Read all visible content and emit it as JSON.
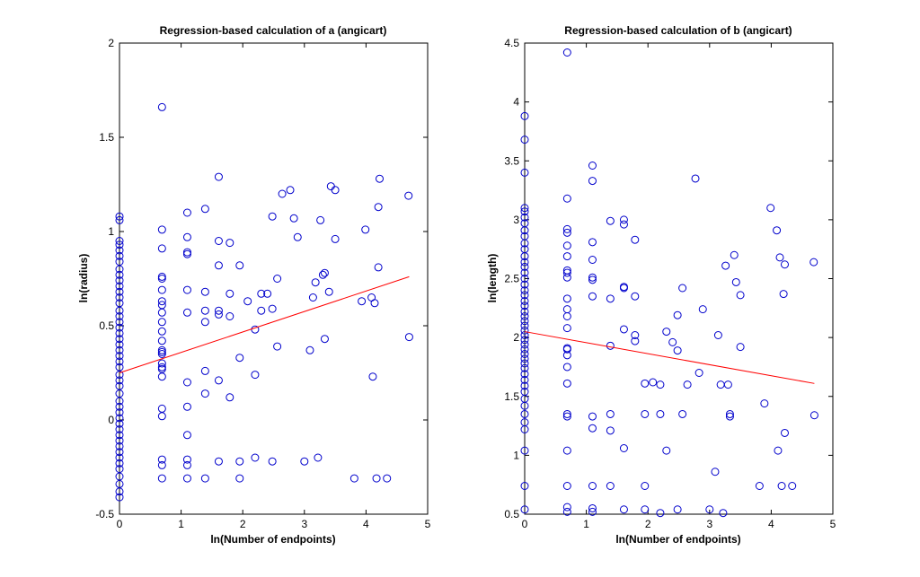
{
  "chart_data": [
    {
      "type": "scatter",
      "title": "Regression-based calculation of a (angicart)",
      "xlabel": "ln(Number of endpoints)",
      "ylabel": "ln(radius)",
      "xlim": [
        0,
        5
      ],
      "ylim": [
        -0.5,
        2
      ],
      "xticks": [
        "0",
        "1",
        "2",
        "3",
        "4",
        "5"
      ],
      "yticks": [
        "-0.5",
        "0",
        "0.5",
        "1",
        "1.5",
        "2"
      ],
      "grid": false,
      "marker_color": "#0000cc",
      "fit_line_color": "#ff0000",
      "fit_line": {
        "x": [
          0,
          4.7
        ],
        "y": [
          0.25,
          0.76
        ]
      },
      "points": [
        [
          0,
          1.08
        ],
        [
          0,
          1.06
        ],
        [
          0,
          0.95
        ],
        [
          0,
          0.93
        ],
        [
          0,
          0.9
        ],
        [
          0,
          0.87
        ],
        [
          0,
          0.84
        ],
        [
          0,
          0.8
        ],
        [
          0,
          0.77
        ],
        [
          0,
          0.74
        ],
        [
          0,
          0.71
        ],
        [
          0,
          0.68
        ],
        [
          0,
          0.65
        ],
        [
          0,
          0.62
        ],
        [
          0,
          0.58
        ],
        [
          0,
          0.55
        ],
        [
          0,
          0.52
        ],
        [
          0,
          0.49
        ],
        [
          0,
          0.46
        ],
        [
          0,
          0.43
        ],
        [
          0,
          0.4
        ],
        [
          0,
          0.37
        ],
        [
          0,
          0.34
        ],
        [
          0,
          0.31
        ],
        [
          0,
          0.28
        ],
        [
          0,
          0.24
        ],
        [
          0,
          0.21
        ],
        [
          0,
          0.18
        ],
        [
          0,
          0.14
        ],
        [
          0,
          0.1
        ],
        [
          0,
          0.07
        ],
        [
          0,
          0.04
        ],
        [
          0,
          0.01
        ],
        [
          0,
          -0.02
        ],
        [
          0,
          -0.05
        ],
        [
          0,
          -0.08
        ],
        [
          0,
          -0.11
        ],
        [
          0,
          -0.14
        ],
        [
          0,
          -0.17
        ],
        [
          0,
          -0.2
        ],
        [
          0,
          -0.23
        ],
        [
          0,
          -0.26
        ],
        [
          0,
          -0.3
        ],
        [
          0,
          -0.34
        ],
        [
          0,
          -0.38
        ],
        [
          0,
          -0.41
        ],
        [
          0.69,
          1.66
        ],
        [
          0.69,
          1.01
        ],
        [
          0.69,
          0.91
        ],
        [
          0.69,
          0.76
        ],
        [
          0.69,
          0.75
        ],
        [
          0.69,
          0.69
        ],
        [
          0.69,
          0.63
        ],
        [
          0.69,
          0.61
        ],
        [
          0.69,
          0.57
        ],
        [
          0.69,
          0.52
        ],
        [
          0.69,
          0.47
        ],
        [
          0.69,
          0.42
        ],
        [
          0.69,
          0.37
        ],
        [
          0.69,
          0.36
        ],
        [
          0.69,
          0.35
        ],
        [
          0.69,
          0.3
        ],
        [
          0.69,
          0.28
        ],
        [
          0.69,
          0.27
        ],
        [
          0.69,
          0.23
        ],
        [
          0.69,
          0.06
        ],
        [
          0.69,
          0.02
        ],
        [
          0.69,
          -0.21
        ],
        [
          0.69,
          -0.24
        ],
        [
          0.69,
          -0.31
        ],
        [
          1.1,
          1.1
        ],
        [
          1.1,
          0.97
        ],
        [
          1.1,
          0.89
        ],
        [
          1.1,
          0.88
        ],
        [
          1.1,
          0.69
        ],
        [
          1.1,
          0.57
        ],
        [
          1.1,
          0.2
        ],
        [
          1.1,
          0.07
        ],
        [
          1.1,
          -0.08
        ],
        [
          1.1,
          -0.21
        ],
        [
          1.1,
          -0.24
        ],
        [
          1.1,
          -0.31
        ],
        [
          1.39,
          1.12
        ],
        [
          1.39,
          0.68
        ],
        [
          1.39,
          0.58
        ],
        [
          1.39,
          0.52
        ],
        [
          1.39,
          0.26
        ],
        [
          1.39,
          0.14
        ],
        [
          1.39,
          -0.31
        ],
        [
          1.61,
          1.29
        ],
        [
          1.61,
          0.95
        ],
        [
          1.61,
          0.82
        ],
        [
          1.61,
          0.58
        ],
        [
          1.61,
          0.56
        ],
        [
          1.61,
          0.21
        ],
        [
          1.61,
          -0.22
        ],
        [
          1.79,
          0.94
        ],
        [
          1.79,
          0.67
        ],
        [
          1.79,
          0.55
        ],
        [
          1.79,
          0.12
        ],
        [
          1.95,
          0.82
        ],
        [
          1.95,
          0.33
        ],
        [
          1.95,
          -0.22
        ],
        [
          1.95,
          -0.31
        ],
        [
          2.08,
          0.63
        ],
        [
          2.2,
          0.48
        ],
        [
          2.2,
          0.24
        ],
        [
          2.2,
          -0.2
        ],
        [
          2.3,
          0.67
        ],
        [
          2.3,
          0.58
        ],
        [
          2.4,
          0.67
        ],
        [
          2.48,
          1.08
        ],
        [
          2.48,
          0.59
        ],
        [
          2.48,
          -0.22
        ],
        [
          2.56,
          0.75
        ],
        [
          2.56,
          0.39
        ],
        [
          2.64,
          1.2
        ],
        [
          2.77,
          1.22
        ],
        [
          2.83,
          1.07
        ],
        [
          2.89,
          0.97
        ],
        [
          3.0,
          -0.22
        ],
        [
          3.09,
          0.37
        ],
        [
          3.14,
          0.65
        ],
        [
          3.18,
          0.73
        ],
        [
          3.22,
          -0.2
        ],
        [
          3.26,
          1.06
        ],
        [
          3.3,
          0.77
        ],
        [
          3.33,
          0.78
        ],
        [
          3.33,
          0.43
        ],
        [
          3.4,
          0.68
        ],
        [
          3.43,
          1.24
        ],
        [
          3.5,
          1.22
        ],
        [
          3.5,
          0.96
        ],
        [
          3.81,
          -0.31
        ],
        [
          3.93,
          0.63
        ],
        [
          3.99,
          1.01
        ],
        [
          4.09,
          0.65
        ],
        [
          4.11,
          0.23
        ],
        [
          4.14,
          0.62
        ],
        [
          4.17,
          -0.31
        ],
        [
          4.2,
          1.13
        ],
        [
          4.2,
          0.81
        ],
        [
          4.22,
          1.28
        ],
        [
          4.34,
          -0.31
        ],
        [
          4.69,
          1.19
        ],
        [
          4.7,
          0.44
        ]
      ]
    },
    {
      "type": "scatter",
      "title": "Regression-based calculation of b (angicart)",
      "xlabel": "ln(Number of endpoints)",
      "ylabel": "ln(length)",
      "xlim": [
        0,
        5
      ],
      "ylim": [
        0.5,
        4.5
      ],
      "xticks": [
        "0",
        "1",
        "2",
        "3",
        "4",
        "5"
      ],
      "yticks": [
        "0.5",
        "1",
        "1.5",
        "2",
        "2.5",
        "3",
        "3.5",
        "4",
        "4.5"
      ],
      "grid": false,
      "marker_color": "#0000cc",
      "fit_line_color": "#ff0000",
      "fit_line": {
        "x": [
          0,
          4.7
        ],
        "y": [
          2.05,
          1.61
        ]
      },
      "points": [
        [
          0,
          3.88
        ],
        [
          0,
          3.68
        ],
        [
          0,
          3.4
        ],
        [
          0,
          3.1
        ],
        [
          0,
          3.07
        ],
        [
          0,
          3.02
        ],
        [
          0,
          2.97
        ],
        [
          0,
          2.91
        ],
        [
          0,
          2.86
        ],
        [
          0,
          2.8
        ],
        [
          0,
          2.75
        ],
        [
          0,
          2.69
        ],
        [
          0,
          2.64
        ],
        [
          0,
          2.6
        ],
        [
          0,
          2.55
        ],
        [
          0,
          2.5
        ],
        [
          0,
          2.45
        ],
        [
          0,
          2.4
        ],
        [
          0,
          2.36
        ],
        [
          0,
          2.31
        ],
        [
          0,
          2.27
        ],
        [
          0,
          2.22
        ],
        [
          0,
          2.18
        ],
        [
          0,
          2.14
        ],
        [
          0,
          2.1
        ],
        [
          0,
          2.06
        ],
        [
          0,
          2.02
        ],
        [
          0,
          1.98
        ],
        [
          0,
          1.94
        ],
        [
          0,
          1.9
        ],
        [
          0,
          1.86
        ],
        [
          0,
          1.82
        ],
        [
          0,
          1.78
        ],
        [
          0,
          1.74
        ],
        [
          0,
          1.69
        ],
        [
          0,
          1.64
        ],
        [
          0,
          1.59
        ],
        [
          0,
          1.54
        ],
        [
          0,
          1.48
        ],
        [
          0,
          1.42
        ],
        [
          0,
          1.35
        ],
        [
          0,
          1.28
        ],
        [
          0,
          1.22
        ],
        [
          0,
          1.04
        ],
        [
          0,
          0.74
        ],
        [
          0,
          0.54
        ],
        [
          0.69,
          4.42
        ],
        [
          0.69,
          3.18
        ],
        [
          0.69,
          2.92
        ],
        [
          0.69,
          2.89
        ],
        [
          0.69,
          2.78
        ],
        [
          0.69,
          2.69
        ],
        [
          0.69,
          2.57
        ],
        [
          0.69,
          2.55
        ],
        [
          0.69,
          2.51
        ],
        [
          0.69,
          2.33
        ],
        [
          0.69,
          2.24
        ],
        [
          0.69,
          2.18
        ],
        [
          0.69,
          2.08
        ],
        [
          0.69,
          1.91
        ],
        [
          0.69,
          1.9
        ],
        [
          0.69,
          1.85
        ],
        [
          0.69,
          1.75
        ],
        [
          0.69,
          1.61
        ],
        [
          0.69,
          1.35
        ],
        [
          0.69,
          1.33
        ],
        [
          0.69,
          1.04
        ],
        [
          0.69,
          0.74
        ],
        [
          0.69,
          0.56
        ],
        [
          0.69,
          0.52
        ],
        [
          1.1,
          3.46
        ],
        [
          1.1,
          3.33
        ],
        [
          1.1,
          2.81
        ],
        [
          1.1,
          2.66
        ],
        [
          1.1,
          2.51
        ],
        [
          1.1,
          2.49
        ],
        [
          1.1,
          2.35
        ],
        [
          1.1,
          1.33
        ],
        [
          1.1,
          1.23
        ],
        [
          1.1,
          0.74
        ],
        [
          1.1,
          0.55
        ],
        [
          1.1,
          0.52
        ],
        [
          1.39,
          2.99
        ],
        [
          1.39,
          2.33
        ],
        [
          1.39,
          1.93
        ],
        [
          1.39,
          1.35
        ],
        [
          1.39,
          1.21
        ],
        [
          1.39,
          0.74
        ],
        [
          1.61,
          3.0
        ],
        [
          1.61,
          2.96
        ],
        [
          1.61,
          2.43
        ],
        [
          1.61,
          2.42
        ],
        [
          1.61,
          2.07
        ],
        [
          1.61,
          1.06
        ],
        [
          1.61,
          0.54
        ],
        [
          1.79,
          2.83
        ],
        [
          1.79,
          2.35
        ],
        [
          1.79,
          2.02
        ],
        [
          1.79,
          1.97
        ],
        [
          1.95,
          1.61
        ],
        [
          1.95,
          1.35
        ],
        [
          1.95,
          0.74
        ],
        [
          1.95,
          0.54
        ],
        [
          2.08,
          1.62
        ],
        [
          2.2,
          1.6
        ],
        [
          2.2,
          1.35
        ],
        [
          2.2,
          0.51
        ],
        [
          2.3,
          2.05
        ],
        [
          2.3,
          1.04
        ],
        [
          2.4,
          1.96
        ],
        [
          2.48,
          2.19
        ],
        [
          2.48,
          1.89
        ],
        [
          2.48,
          0.54
        ],
        [
          2.56,
          2.42
        ],
        [
          2.56,
          1.35
        ],
        [
          2.64,
          1.6
        ],
        [
          2.77,
          3.35
        ],
        [
          2.83,
          1.7
        ],
        [
          2.89,
          2.24
        ],
        [
          3.0,
          0.54
        ],
        [
          3.09,
          0.86
        ],
        [
          3.14,
          2.02
        ],
        [
          3.18,
          1.6
        ],
        [
          3.22,
          0.51
        ],
        [
          3.26,
          2.61
        ],
        [
          3.3,
          1.6
        ],
        [
          3.33,
          1.35
        ],
        [
          3.33,
          1.33
        ],
        [
          3.4,
          2.7
        ],
        [
          3.43,
          2.47
        ],
        [
          3.5,
          2.36
        ],
        [
          3.5,
          1.92
        ],
        [
          3.81,
          0.74
        ],
        [
          3.89,
          1.44
        ],
        [
          3.99,
          3.1
        ],
        [
          4.09,
          2.91
        ],
        [
          4.11,
          1.04
        ],
        [
          4.14,
          2.68
        ],
        [
          4.17,
          0.74
        ],
        [
          4.2,
          2.37
        ],
        [
          4.22,
          1.19
        ],
        [
          4.22,
          2.62
        ],
        [
          4.34,
          0.74
        ],
        [
          4.69,
          2.64
        ],
        [
          4.7,
          1.34
        ]
      ]
    }
  ]
}
